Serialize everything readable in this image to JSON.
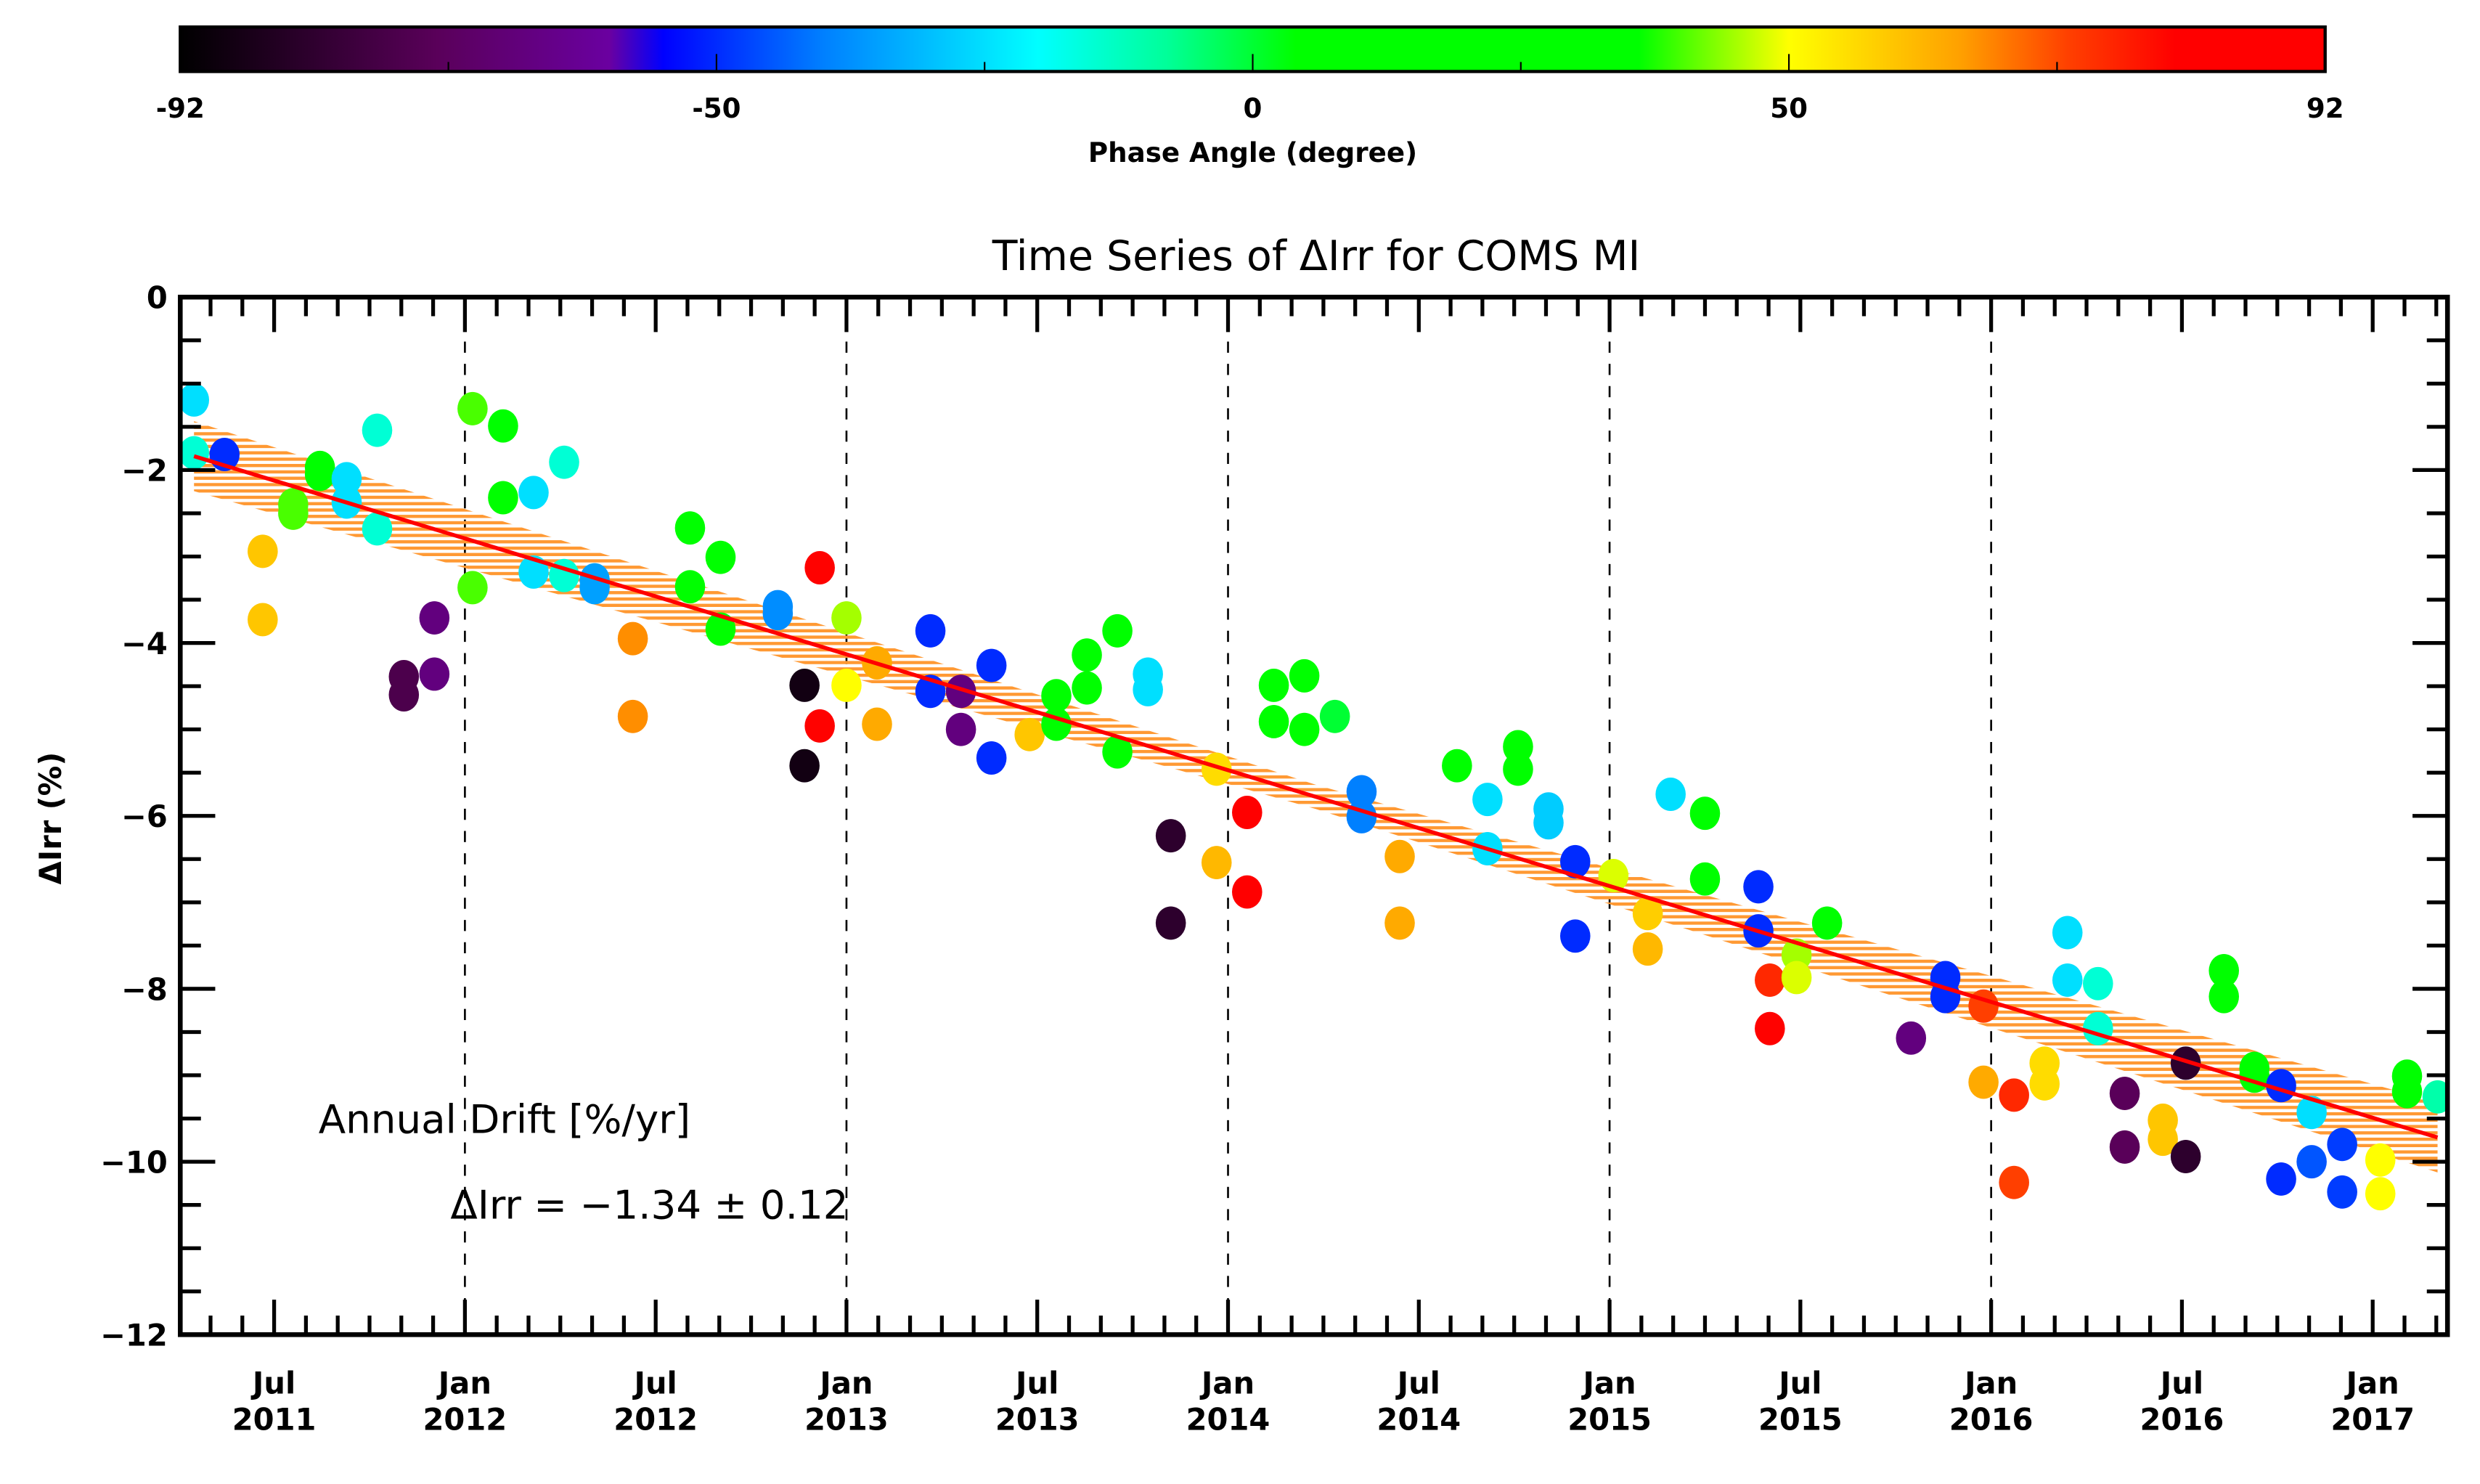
{
  "colorbar": {
    "label": "Phase Angle (degree)",
    "range": [
      -92,
      92
    ],
    "tick_labels": [
      "-92",
      "-50",
      "0",
      "50",
      "92"
    ],
    "tick_values": [
      -92,
      -50,
      0,
      50,
      92
    ],
    "colors": [
      "#000000",
      "#5a005a",
      "#6a00a0",
      "#0000ff",
      "#0080ff",
      "#00ffff",
      "#00ff99",
      "#00ff00",
      "#00ff00",
      "#ffff00",
      "#ffa000",
      "#ff4000",
      "#ff0000",
      "#ff0000"
    ]
  },
  "chart_data": {
    "type": "scatter",
    "title": "Time Series of ΔIrr for COMS MI",
    "xlabel": "",
    "ylabel": "ΔIrr (%)",
    "xlim": [
      2011.254,
      2017.196
    ],
    "ylim": [
      -12,
      0
    ],
    "yticks": [
      0,
      -2,
      -4,
      -6,
      -8,
      -10,
      -12
    ],
    "ytick_labels": [
      "0",
      "−2",
      "−4",
      "−6",
      "−8",
      "−10",
      "−12"
    ],
    "xticks": [
      {
        "t": 2011.5,
        "m": "Jul",
        "y": "2011"
      },
      {
        "t": 2012.0,
        "m": "Jan",
        "y": "2012"
      },
      {
        "t": 2012.5,
        "m": "Jul",
        "y": "2012"
      },
      {
        "t": 2013.0,
        "m": "Jan",
        "y": "2013"
      },
      {
        "t": 2013.5,
        "m": "Jul",
        "y": "2013"
      },
      {
        "t": 2014.0,
        "m": "Jan",
        "y": "2014"
      },
      {
        "t": 2014.5,
        "m": "Jul",
        "y": "2014"
      },
      {
        "t": 2015.0,
        "m": "Jan",
        "y": "2015"
      },
      {
        "t": 2015.5,
        "m": "Jul",
        "y": "2015"
      },
      {
        "t": 2016.0,
        "m": "Jan",
        "y": "2016"
      },
      {
        "t": 2016.5,
        "m": "Jul",
        "y": "2016"
      },
      {
        "t": 2017.0,
        "m": "Jan",
        "y": "2017"
      }
    ],
    "vertical_dashed_lines": [
      2012.0,
      2013.0,
      2014.0,
      2015.0,
      2016.0
    ],
    "fit": {
      "t0": 2011.29,
      "v0": -1.84,
      "t1": 2017.17,
      "slope_per_year": -1.34,
      "uncertainty": 0.12,
      "line_color": "#ff0000",
      "band_color": "#ff9933"
    },
    "annotation": {
      "line1": "Annual Drift [%/yr]",
      "line2": "ΔIrr = −1.34 ± 0.12"
    },
    "point_columns": [
      "date_year",
      "delta_irr_percent",
      "phase_angle_deg"
    ],
    "points": [
      [
        2011.29,
        -1.19,
        -25
      ],
      [
        2011.29,
        -1.8,
        -15
      ],
      [
        2011.37,
        -1.82,
        -50
      ],
      [
        2011.47,
        -2.94,
        58
      ],
      [
        2011.47,
        -3.73,
        58
      ],
      [
        2011.55,
        -2.4,
        40
      ],
      [
        2011.55,
        -2.5,
        40
      ],
      [
        2011.62,
        -1.97,
        15
      ],
      [
        2011.62,
        -2.05,
        15
      ],
      [
        2011.69,
        -2.1,
        -25
      ],
      [
        2011.69,
        -2.37,
        -25
      ],
      [
        2011.77,
        -1.54,
        -15
      ],
      [
        2011.77,
        -2.68,
        -15
      ],
      [
        2011.84,
        -4.39,
        -75
      ],
      [
        2011.84,
        -4.6,
        -75
      ],
      [
        2011.92,
        -3.71,
        -65
      ],
      [
        2011.92,
        -4.36,
        -65
      ],
      [
        2012.02,
        -1.29,
        40
      ],
      [
        2012.02,
        -3.36,
        40
      ],
      [
        2012.1,
        -1.49,
        20
      ],
      [
        2012.1,
        -2.32,
        20
      ],
      [
        2012.18,
        -2.26,
        -25
      ],
      [
        2012.18,
        -3.18,
        -25
      ],
      [
        2012.26,
        -1.91,
        -15
      ],
      [
        2012.26,
        -3.22,
        -15
      ],
      [
        2012.34,
        -3.27,
        -35
      ],
      [
        2012.34,
        -3.36,
        -35
      ],
      [
        2012.44,
        -3.95,
        65
      ],
      [
        2012.44,
        -4.85,
        65
      ],
      [
        2012.59,
        -2.67,
        15
      ],
      [
        2012.59,
        -3.35,
        15
      ],
      [
        2012.67,
        -3.01,
        15
      ],
      [
        2012.67,
        -3.84,
        15
      ],
      [
        2012.82,
        -3.58,
        -38
      ],
      [
        2012.82,
        -3.66,
        -38
      ],
      [
        2012.89,
        -4.49,
        -88
      ],
      [
        2012.89,
        -5.42,
        -88
      ],
      [
        2012.93,
        -3.13,
        80
      ],
      [
        2012.93,
        -4.96,
        80
      ],
      [
        2013.0,
        -3.71,
        45
      ],
      [
        2013.0,
        -4.49,
        50
      ],
      [
        2013.08,
        -4.23,
        62
      ],
      [
        2013.08,
        -4.94,
        62
      ],
      [
        2013.22,
        -3.86,
        -50
      ],
      [
        2013.22,
        -4.56,
        -50
      ],
      [
        2013.3,
        -4.56,
        -65
      ],
      [
        2013.3,
        -5.0,
        -65
      ],
      [
        2013.38,
        -4.26,
        -50
      ],
      [
        2013.38,
        -5.33,
        -50
      ],
      [
        2013.48,
        -5.06,
        58
      ],
      [
        2013.55,
        -4.61,
        20
      ],
      [
        2013.55,
        -4.94,
        20
      ],
      [
        2013.63,
        -4.14,
        15
      ],
      [
        2013.63,
        -4.52,
        15
      ],
      [
        2013.71,
        -3.86,
        15
      ],
      [
        2013.71,
        -5.26,
        15
      ],
      [
        2013.79,
        -4.36,
        -25
      ],
      [
        2013.79,
        -4.54,
        -25
      ],
      [
        2013.85,
        -6.23,
        -82
      ],
      [
        2013.85,
        -7.24,
        -82
      ],
      [
        2013.97,
        -5.46,
        55
      ],
      [
        2013.97,
        -6.54,
        60
      ],
      [
        2014.05,
        -5.96,
        85
      ],
      [
        2014.05,
        -6.88,
        85
      ],
      [
        2014.12,
        -4.49,
        15
      ],
      [
        2014.12,
        -4.91,
        15
      ],
      [
        2014.2,
        -4.38,
        15
      ],
      [
        2014.2,
        -5.0,
        15
      ],
      [
        2014.28,
        -4.85,
        0
      ],
      [
        2014.35,
        -5.72,
        -40
      ],
      [
        2014.35,
        -6.01,
        -40
      ],
      [
        2014.45,
        -6.47,
        62
      ],
      [
        2014.45,
        -7.24,
        62
      ],
      [
        2014.6,
        -5.42,
        15
      ],
      [
        2014.68,
        -5.81,
        -25
      ],
      [
        2014.68,
        -6.38,
        -25
      ],
      [
        2014.76,
        -5.2,
        20
      ],
      [
        2014.76,
        -5.46,
        20
      ],
      [
        2014.84,
        -5.92,
        -28
      ],
      [
        2014.84,
        -6.08,
        -28
      ],
      [
        2014.91,
        -6.53,
        -50
      ],
      [
        2014.91,
        -7.39,
        -50
      ],
      [
        2015.01,
        -6.69,
        48
      ],
      [
        2015.1,
        -7.13,
        57
      ],
      [
        2015.1,
        -7.54,
        60
      ],
      [
        2015.16,
        -5.75,
        -25
      ],
      [
        2015.25,
        -5.97,
        15
      ],
      [
        2015.25,
        -6.73,
        15
      ],
      [
        2015.39,
        -6.82,
        -50
      ],
      [
        2015.39,
        -7.33,
        -50
      ],
      [
        2015.42,
        -7.9,
        75
      ],
      [
        2015.42,
        -8.46,
        80
      ],
      [
        2015.49,
        -7.61,
        45
      ],
      [
        2015.49,
        -7.87,
        48
      ],
      [
        2015.57,
        -7.24,
        15
      ],
      [
        2015.79,
        -8.57,
        -65
      ],
      [
        2015.88,
        -7.87,
        -50
      ],
      [
        2015.88,
        -8.09,
        -50
      ],
      [
        2015.98,
        -8.2,
        72
      ],
      [
        2015.98,
        -9.08,
        62
      ],
      [
        2016.06,
        -9.23,
        75
      ],
      [
        2016.06,
        -10.24,
        72
      ],
      [
        2016.14,
        -8.86,
        55
      ],
      [
        2016.14,
        -9.1,
        55
      ],
      [
        2016.2,
        -7.35,
        -25
      ],
      [
        2016.2,
        -7.9,
        -25
      ],
      [
        2016.28,
        -7.94,
        -15
      ],
      [
        2016.28,
        -8.46,
        -15
      ],
      [
        2016.35,
        -9.21,
        -72
      ],
      [
        2016.35,
        -9.83,
        -72
      ],
      [
        2016.45,
        -9.52,
        58
      ],
      [
        2016.45,
        -9.74,
        58
      ],
      [
        2016.51,
        -8.86,
        -82
      ],
      [
        2016.51,
        -9.94,
        -82
      ],
      [
        2016.61,
        -7.79,
        15
      ],
      [
        2016.61,
        -8.09,
        15
      ],
      [
        2016.69,
        -8.92,
        35
      ],
      [
        2016.69,
        -9.01,
        35
      ],
      [
        2016.76,
        -9.12,
        -50
      ],
      [
        2016.76,
        -10.2,
        -50
      ],
      [
        2016.84,
        -9.43,
        -25
      ],
      [
        2016.84,
        -10.0,
        -45
      ],
      [
        2016.92,
        -9.8,
        -48
      ],
      [
        2016.92,
        -10.35,
        -48
      ],
      [
        2017.02,
        -9.98,
        50
      ],
      [
        2017.02,
        -10.37,
        50
      ],
      [
        2017.09,
        -9.01,
        15
      ],
      [
        2017.09,
        -9.19,
        15
      ],
      [
        2017.17,
        -9.25,
        -10
      ]
    ]
  }
}
